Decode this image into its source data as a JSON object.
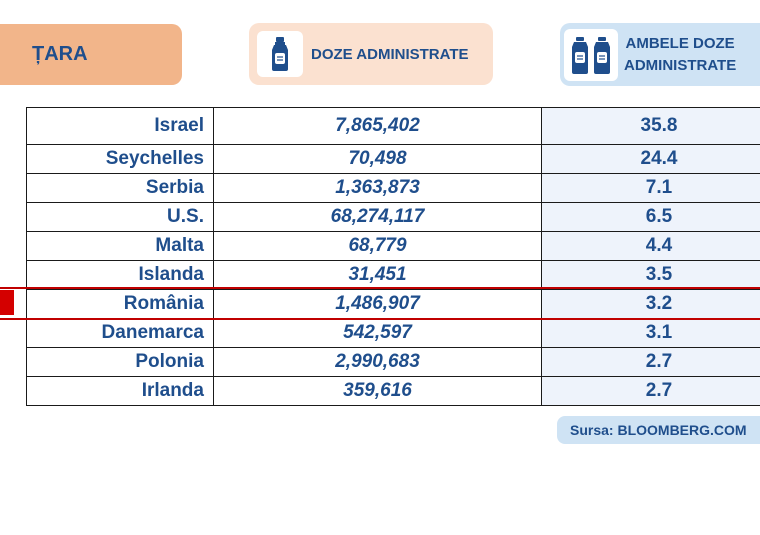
{
  "header": {
    "country_label": "ȚARA",
    "doses_label": "DOZE ADMINISTRATE",
    "both_doses_line1": "AMBELE DOZE",
    "both_doses_line2": "ADMINISTRATE"
  },
  "rows": [
    {
      "country": "Israel",
      "doses": "7,865,402",
      "both": "35.8"
    },
    {
      "country": "Seychelles",
      "doses": "70,498",
      "both": "24.4"
    },
    {
      "country": "Serbia",
      "doses": "1,363,873",
      "both": "7.1"
    },
    {
      "country": "U.S.",
      "doses": "68,274,117",
      "both": "6.5"
    },
    {
      "country": "Malta",
      "doses": "68,779",
      "both": "4.4"
    },
    {
      "country": "Islanda",
      "doses": "31,451",
      "both": "3.5"
    },
    {
      "country": "România",
      "doses": "1,486,907",
      "both": "3.2"
    },
    {
      "country": "Danemarca",
      "doses": "542,597",
      "both": "3.1"
    },
    {
      "country": "Polonia",
      "doses": "2,990,683",
      "both": "2.7"
    },
    {
      "country": "Irlanda",
      "doses": "359,616",
      "both": "2.7"
    }
  ],
  "highlighted_country": "România",
  "source": "Sursa: BLOOMBERG.COM",
  "colors": {
    "text": "#1f4e8c",
    "country_header_bg": "#f2b58a",
    "doses_header_bg": "#fbe1d0",
    "both_header_bg": "#cfe3f4",
    "highlight": "#c00000"
  },
  "icons": {
    "doses": "vaccine-vial-icon",
    "both": "two-vaccine-vials-icon"
  }
}
